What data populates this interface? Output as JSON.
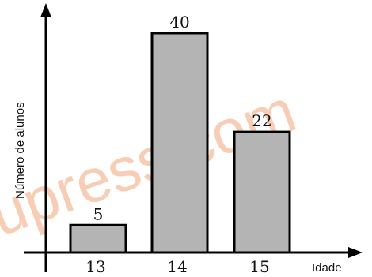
{
  "chart_data": {
    "type": "bar",
    "title": "",
    "xlabel": "Idade",
    "ylabel": "Número de alunos",
    "categories": [
      "13",
      "14",
      "15"
    ],
    "values": [
      5,
      40,
      22
    ],
    "data_labels": [
      "5",
      "40",
      "22"
    ],
    "ylim": [
      0,
      40
    ],
    "grid": false,
    "legend": "none",
    "colors": {
      "bar_fill": "#b4b4b4",
      "bar_stroke": "#000000",
      "axis": "#000000"
    }
  },
  "watermark": {
    "text": "upress.com",
    "color": "#f2a77a"
  }
}
